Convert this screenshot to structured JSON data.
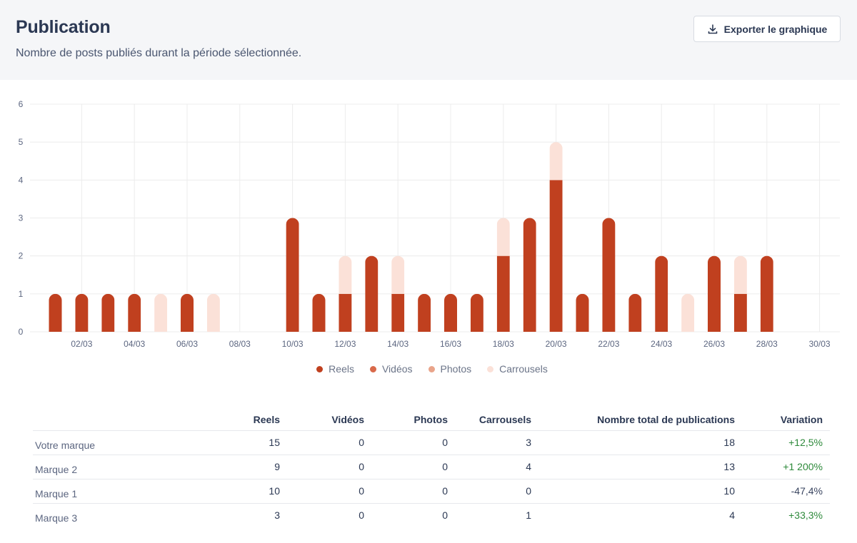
{
  "header": {
    "title": "Publication",
    "subtitle": "Nombre de posts publiés durant la période sélectionnée.",
    "export_label": "Exporter le graphique"
  },
  "colors": {
    "reels": "#c0401f",
    "videos": "#d9694a",
    "photos": "#e9a48a",
    "carrousels": "#fbe1d8",
    "grid": "#ececec",
    "axis_text": "#5c6680"
  },
  "chart_data": {
    "type": "bar",
    "stacked": true,
    "title": "Publication",
    "ylim": [
      0,
      6
    ],
    "yticks": [
      0,
      1,
      2,
      3,
      4,
      5,
      6
    ],
    "x": [
      "01/03",
      "02/03",
      "03/03",
      "04/03",
      "05/03",
      "06/03",
      "07/03",
      "08/03",
      "09/03",
      "10/03",
      "11/03",
      "12/03",
      "13/03",
      "14/03",
      "15/03",
      "16/03",
      "17/03",
      "18/03",
      "19/03",
      "20/03",
      "21/03",
      "22/03",
      "23/03",
      "24/03",
      "25/03",
      "26/03",
      "27/03",
      "28/03",
      "29/03",
      "30/03",
      "31/03"
    ],
    "xtick_labels": [
      "02/03",
      "04/03",
      "06/03",
      "08/03",
      "10/03",
      "12/03",
      "14/03",
      "16/03",
      "18/03",
      "20/03",
      "22/03",
      "24/03",
      "26/03",
      "28/03",
      "30/03"
    ],
    "series": [
      {
        "name": "Reels",
        "color": "#c0401f",
        "values": [
          1,
          1,
          1,
          1,
          0,
          1,
          0,
          0,
          0,
          3,
          1,
          1,
          2,
          1,
          1,
          1,
          1,
          2,
          3,
          4,
          1,
          3,
          1,
          2,
          0,
          2,
          1,
          2,
          0,
          0,
          0
        ]
      },
      {
        "name": "Vidéos",
        "color": "#d9694a",
        "values": [
          0,
          0,
          0,
          0,
          0,
          0,
          0,
          0,
          0,
          0,
          0,
          0,
          0,
          0,
          0,
          0,
          0,
          0,
          0,
          0,
          0,
          0,
          0,
          0,
          0,
          0,
          0,
          0,
          0,
          0,
          0
        ]
      },
      {
        "name": "Photos",
        "color": "#e9a48a",
        "values": [
          0,
          0,
          0,
          0,
          0,
          0,
          0,
          0,
          0,
          0,
          0,
          0,
          0,
          0,
          0,
          0,
          0,
          0,
          0,
          0,
          0,
          0,
          0,
          0,
          0,
          0,
          0,
          0,
          0,
          0,
          0
        ]
      },
      {
        "name": "Carrousels",
        "color": "#fbe1d8",
        "values": [
          0,
          0,
          0,
          0,
          1,
          0,
          1,
          0,
          0,
          0,
          0,
          1,
          0,
          1,
          0,
          0,
          0,
          1,
          0,
          1,
          0,
          0,
          0,
          0,
          1,
          0,
          1,
          0,
          0,
          0,
          0
        ]
      }
    ],
    "legend_position": "bottom",
    "grid": true
  },
  "legend": [
    {
      "label": "Reels",
      "color": "#c0401f"
    },
    {
      "label": "Vidéos",
      "color": "#d9694a"
    },
    {
      "label": "Photos",
      "color": "#e9a48a"
    },
    {
      "label": "Carrousels",
      "color": "#fbe1d8"
    }
  ],
  "table": {
    "headers": [
      "",
      "Reels",
      "Vidéos",
      "Photos",
      "Carrousels",
      "Nombre total de publications",
      "Variation"
    ],
    "rows": [
      {
        "name": "Votre marque",
        "reels": "15",
        "videos": "0",
        "photos": "0",
        "carrousels": "3",
        "total": "18",
        "variation": "+12,5%"
      },
      {
        "name": "Marque 2",
        "reels": "9",
        "videos": "0",
        "photos": "0",
        "carrousels": "4",
        "total": "13",
        "variation": "+1 200%"
      },
      {
        "name": "Marque 1",
        "reels": "10",
        "videos": "0",
        "photos": "0",
        "carrousels": "0",
        "total": "10",
        "variation": "-47,4%"
      },
      {
        "name": "Marque 3",
        "reels": "3",
        "videos": "0",
        "photos": "0",
        "carrousels": "1",
        "total": "4",
        "variation": "+33,3%"
      }
    ]
  }
}
